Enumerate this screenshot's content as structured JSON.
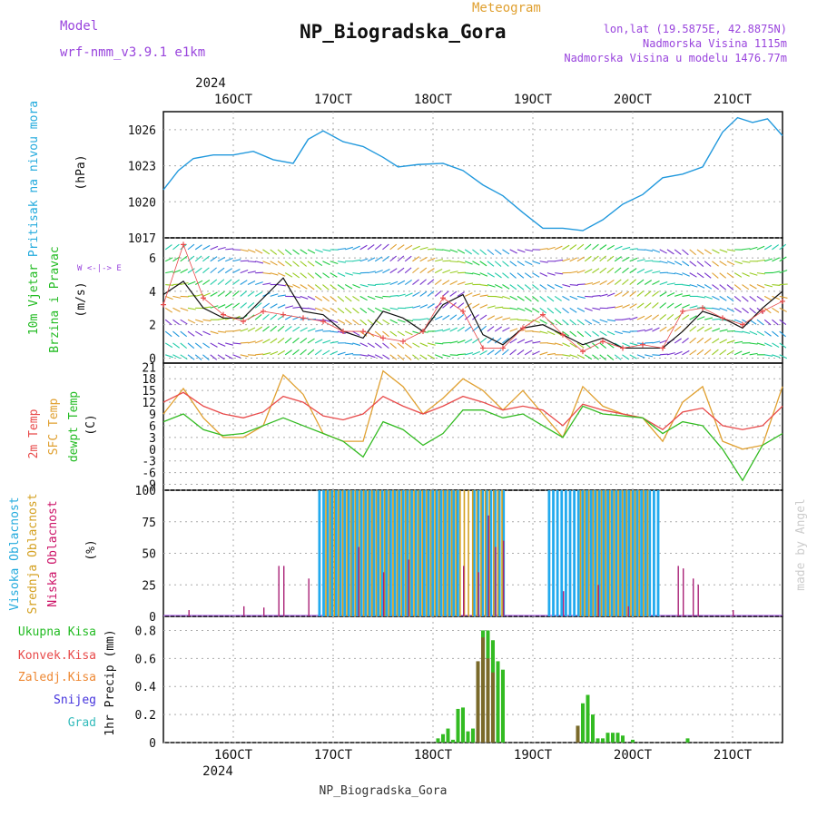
{
  "header": {
    "model_label": "Model",
    "model_name": "wrf-nmm_v3.9.1  e1km",
    "title": "NP_Biogradska_Gora",
    "subtitle": "Meteogram",
    "lonlat": "lon,lat (19.5875E, 42.8875N)",
    "elevation": "Nadmorska Visina 1115m",
    "model_elevation": "Nadmorska Visina u modelu 1476.77m"
  },
  "footer": {
    "station": "NP_Biogradska_Gora",
    "credit": "made by Angel"
  },
  "colors": {
    "pressure": "#2299dd",
    "temp2m": "#e84a4a",
    "sfc": "#e0a030",
    "dewpt": "#33bb22",
    "high_cloud": "#22aaee",
    "mid_cloud": "#d4a020",
    "low_cloud": "#aa2277",
    "precip_total": "#33bb22",
    "precip_large": "#7a6a2a",
    "wind_speed": "#111111",
    "gust": "#e84a4a",
    "label_green": "#33bb22",
    "label_red": "#e84a4a",
    "label_orange": "#ee8833",
    "label_blue": "#4433dd",
    "label_cyan": "#33bbbb",
    "purple": "#9944dd"
  },
  "chart_data": [
    {
      "type": "line",
      "panel": "pressure",
      "ylabel": [
        "Pritisak na nivou mora",
        "(hPa)"
      ],
      "yticks": [
        1017,
        1020,
        1023,
        1026
      ],
      "ylim": [
        1017,
        1027.5
      ],
      "x_top_labels": [
        "16OCT",
        "17OCT",
        "18OCT",
        "19OCT",
        "20OCT",
        "21OCT"
      ],
      "x_year": "2024",
      "series": [
        {
          "values_from": "day 15.3 to 21.5",
          "x": [
            15.3,
            15.45,
            15.6,
            15.8,
            16.0,
            16.2,
            16.4,
            16.6,
            16.75,
            16.9,
            17.1,
            17.3,
            17.5,
            17.65,
            17.85,
            18.1,
            18.3,
            18.5,
            18.7,
            18.9,
            19.1,
            19.3,
            19.5,
            19.7,
            19.9,
            20.1,
            20.3,
            20.5,
            20.7,
            20.9,
            21.05,
            21.2,
            21.35,
            21.5
          ],
          "values": [
            1021.0,
            1022.6,
            1023.6,
            1023.9,
            1023.9,
            1024.2,
            1023.5,
            1023.2,
            1025.2,
            1025.9,
            1025.0,
            1024.6,
            1023.7,
            1022.9,
            1023.1,
            1023.2,
            1022.6,
            1021.4,
            1020.5,
            1019.1,
            1017.8,
            1017.8,
            1017.6,
            1018.5,
            1019.8,
            1020.6,
            1022.0,
            1022.3,
            1022.9,
            1025.8,
            1027.0,
            1026.6,
            1026.9,
            1025.5
          ]
        }
      ]
    },
    {
      "type": "line",
      "panel": "wind",
      "ylabel": [
        "10m Vjetar",
        "Brzina i Pravac",
        "(m/s)"
      ],
      "compass": "W <-|-> E, S <-|-> N",
      "yticks": [
        0,
        2,
        4,
        6
      ],
      "ylim": [
        -0.3,
        7.2
      ],
      "series": [
        {
          "name": "speed",
          "x": [
            15.3,
            15.5,
            15.7,
            15.9,
            16.1,
            16.3,
            16.5,
            16.7,
            16.9,
            17.1,
            17.3,
            17.5,
            17.7,
            17.9,
            18.1,
            18.3,
            18.5,
            18.7,
            18.9,
            19.1,
            19.3,
            19.5,
            19.7,
            19.9,
            20.1,
            20.3,
            20.5,
            20.7,
            20.9,
            21.1,
            21.3,
            21.5
          ],
          "values": [
            3.8,
            4.6,
            3.0,
            2.4,
            2.4,
            3.6,
            4.8,
            2.8,
            2.6,
            1.6,
            1.2,
            2.8,
            2.4,
            1.6,
            3.2,
            3.8,
            1.4,
            0.8,
            1.8,
            2.0,
            1.4,
            0.8,
            1.2,
            0.6,
            0.6,
            0.6,
            1.6,
            2.8,
            2.4,
            1.8,
            3.0,
            4.0
          ]
        },
        {
          "name": "gust",
          "x": [
            15.3,
            15.5,
            15.7,
            15.9,
            16.1,
            16.3,
            16.5,
            16.7,
            16.9,
            17.1,
            17.3,
            17.5,
            17.7,
            17.9,
            18.1,
            18.3,
            18.5,
            18.7,
            18.9,
            19.1,
            19.3,
            19.5,
            19.7,
            19.9,
            20.1,
            20.3,
            20.5,
            20.7,
            20.9,
            21.1,
            21.3,
            21.5
          ],
          "values": [
            3.2,
            6.8,
            3.6,
            2.6,
            2.2,
            2.8,
            2.6,
            2.4,
            2.2,
            1.6,
            1.6,
            1.2,
            1.0,
            1.6,
            3.6,
            2.8,
            0.6,
            0.6,
            1.8,
            2.6,
            1.4,
            0.4,
            1.0,
            0.6,
            0.8,
            0.6,
            2.8,
            3.0,
            2.4,
            2.0,
            2.8,
            3.4
          ]
        }
      ]
    },
    {
      "type": "line",
      "panel": "temperature",
      "ylabel": [
        "2m Temp",
        "SFC Temp",
        "dewpt Temp",
        "(C)"
      ],
      "yticks": [
        -9,
        -6,
        -3,
        0,
        3,
        6,
        9,
        12,
        15,
        18,
        21
      ],
      "ylim": [
        -10.5,
        22
      ],
      "series": [
        {
          "name": "2m Temp",
          "x": [
            15.3,
            15.5,
            15.7,
            15.9,
            16.1,
            16.3,
            16.5,
            16.7,
            16.9,
            17.1,
            17.3,
            17.5,
            17.7,
            17.9,
            18.1,
            18.3,
            18.5,
            18.7,
            18.9,
            19.1,
            19.3,
            19.5,
            19.7,
            19.9,
            20.1,
            20.3,
            20.5,
            20.7,
            20.9,
            21.1,
            21.3,
            21.5
          ],
          "values": [
            12,
            14.5,
            11,
            9,
            8,
            9.5,
            13.5,
            12,
            8.5,
            7.5,
            9,
            13.5,
            11,
            9,
            11,
            13.5,
            12,
            10,
            11,
            10,
            6,
            11.5,
            10,
            9,
            8,
            5,
            9.5,
            10.5,
            6,
            5,
            6,
            11
          ]
        },
        {
          "name": "SFC Temp",
          "x": [
            15.3,
            15.5,
            15.7,
            15.9,
            16.1,
            16.3,
            16.5,
            16.7,
            16.9,
            17.1,
            17.3,
            17.5,
            17.7,
            17.9,
            18.1,
            18.3,
            18.5,
            18.7,
            18.9,
            19.1,
            19.3,
            19.5,
            19.7,
            19.9,
            20.1,
            20.3,
            20.5,
            20.7,
            20.9,
            21.1,
            21.3,
            21.5
          ],
          "values": [
            9,
            15.5,
            8,
            3,
            3,
            6,
            19,
            14,
            4,
            2,
            2,
            20,
            16,
            9,
            13,
            18,
            15,
            10,
            15,
            9,
            3,
            16,
            11,
            9,
            8,
            2,
            12,
            16,
            2,
            0,
            1,
            16
          ]
        },
        {
          "name": "dewpt Temp",
          "x": [
            15.3,
            15.5,
            15.7,
            15.9,
            16.1,
            16.3,
            16.5,
            16.7,
            16.9,
            17.1,
            17.3,
            17.5,
            17.7,
            17.9,
            18.1,
            18.3,
            18.5,
            18.7,
            18.9,
            19.1,
            19.3,
            19.5,
            19.7,
            19.9,
            20.1,
            20.3,
            20.5,
            20.7,
            20.9,
            21.1,
            21.3,
            21.5
          ],
          "values": [
            7,
            9,
            5,
            3.5,
            4,
            6,
            8,
            6,
            4,
            2,
            -2,
            7,
            5,
            1,
            4,
            10,
            10,
            8,
            9,
            6,
            3,
            11,
            9,
            8.5,
            8,
            4,
            7,
            6,
            0,
            -8,
            1,
            4
          ]
        }
      ]
    },
    {
      "type": "bar",
      "panel": "clouds",
      "ylabel": [
        "Visoka Oblacnost",
        "Srednja Oblacnost",
        "Niska Oblacnost",
        "(%)"
      ],
      "yticks": [
        0,
        25,
        50,
        75,
        100
      ],
      "ylim": [
        0,
        100
      ],
      "series": [
        {
          "name": "Visoka Oblacnost",
          "ranges": [
            [
              16.85,
              18.25
            ],
            [
              18.4,
              18.7
            ],
            [
              19.15,
              20.25
            ]
          ],
          "values": [
            100,
            100,
            100
          ]
        },
        {
          "name": "Srednja Oblacnost",
          "ranges": [
            [
              16.9,
              18.7
            ],
            [
              19.45,
              20.15
            ]
          ],
          "values": [
            100,
            100
          ]
        },
        {
          "name": "Niska Oblacnost",
          "x": [
            15.55,
            16.1,
            16.3,
            16.45,
            16.5,
            16.75,
            17.25,
            17.5,
            17.75,
            18.3,
            18.45,
            18.55,
            18.62,
            18.7,
            19.3,
            19.65,
            19.95,
            20.45,
            20.5,
            20.6,
            20.65,
            21.0
          ],
          "values": [
            5,
            8,
            7,
            40,
            40,
            30,
            55,
            35,
            45,
            40,
            35,
            80,
            55,
            60,
            20,
            25,
            8,
            40,
            38,
            30,
            25,
            5
          ]
        }
      ]
    },
    {
      "type": "bar",
      "panel": "precipitation",
      "ylabel": [
        "1hr Precip (mm)"
      ],
      "legend": [
        "Ukupna Kisa",
        "Konvek.Kisa",
        "Zaledj.Kisa",
        "Snijeg",
        "Grad"
      ],
      "yticks": [
        0,
        0.2,
        0.4,
        0.6,
        0.8
      ],
      "ylim": [
        0,
        0.9
      ],
      "x_bottom_labels": [
        "16OCT",
        "17OCT",
        "18OCT",
        "19OCT",
        "20OCT",
        "21OCT"
      ],
      "x_year": "2024",
      "series": [
        {
          "name": "Ukupna Kisa",
          "x": [
            18.05,
            18.1,
            18.15,
            18.2,
            18.25,
            18.3,
            18.35,
            18.4,
            18.45,
            18.5,
            18.55,
            18.6,
            18.65,
            18.7,
            19.45,
            19.5,
            19.55,
            19.6,
            19.65,
            19.7,
            19.75,
            19.8,
            19.85,
            19.9,
            20.0,
            20.55
          ],
          "values": [
            0.03,
            0.06,
            0.1,
            0.02,
            0.24,
            0.25,
            0.08,
            0.1,
            0.4,
            0.8,
            0.8,
            0.73,
            0.58,
            0.52,
            0.12,
            0.28,
            0.34,
            0.2,
            0.03,
            0.03,
            0.07,
            0.07,
            0.07,
            0.05,
            0.02,
            0.03
          ]
        },
        {
          "name": "Zaledj.Kisa",
          "x": [
            18.45,
            18.5,
            18.55,
            18.6,
            19.45
          ],
          "values": [
            0.58,
            0.75,
            0.6,
            0.5,
            0.12
          ]
        }
      ]
    }
  ]
}
